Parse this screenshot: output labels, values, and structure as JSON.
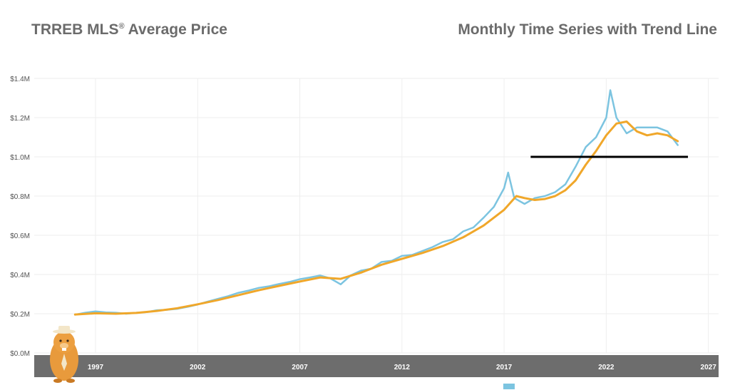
{
  "header": {
    "title_main": "TRREB MLS",
    "title_reg": "®",
    "title_rest": " Average Price",
    "subtitle": "Monthly Time Series with Trend Line"
  },
  "colors": {
    "price": "#7cc4e0",
    "trend": "#f0a72a",
    "threshold": "#000000",
    "axis_band": "#6d6d6d",
    "grid": "#eeeeee"
  },
  "mascot": {
    "icon": "beaver-mascot-icon"
  },
  "chart_data": {
    "type": "line",
    "title": "TRREB MLS® Average Price",
    "subtitle": "Monthly Time Series with Trend Line",
    "x_ticks": [
      "1997",
      "2002",
      "2007",
      "2012",
      "2017",
      "2022",
      "2027"
    ],
    "y_ticks": [
      "$0.0M",
      "$0.2M",
      "$0.4M",
      "$0.6M",
      "$0.8M",
      "$1.0M",
      "$1.2M",
      "$1.4M"
    ],
    "xlim": [
      1994,
      2027.5
    ],
    "ylim": [
      0,
      1.4
    ],
    "y_unit": "$M",
    "grid": true,
    "series": [
      {
        "key": "price",
        "style": "monthly",
        "points": [
          [
            1996.0,
            0.195
          ],
          [
            1996.5,
            0.205
          ],
          [
            1997.0,
            0.212
          ],
          [
            1997.5,
            0.207
          ],
          [
            1998.0,
            0.205
          ],
          [
            1998.5,
            0.2
          ],
          [
            1999.0,
            0.205
          ],
          [
            1999.5,
            0.208
          ],
          [
            2000.0,
            0.218
          ],
          [
            2000.5,
            0.22
          ],
          [
            2001.0,
            0.225
          ],
          [
            2001.5,
            0.235
          ],
          [
            2002.0,
            0.247
          ],
          [
            2002.5,
            0.262
          ],
          [
            2003.0,
            0.276
          ],
          [
            2003.5,
            0.29
          ],
          [
            2004.0,
            0.307
          ],
          [
            2004.5,
            0.318
          ],
          [
            2005.0,
            0.332
          ],
          [
            2005.5,
            0.34
          ],
          [
            2006.0,
            0.352
          ],
          [
            2006.5,
            0.362
          ],
          [
            2007.0,
            0.376
          ],
          [
            2007.5,
            0.385
          ],
          [
            2008.0,
            0.395
          ],
          [
            2008.5,
            0.38
          ],
          [
            2009.0,
            0.35
          ],
          [
            2009.5,
            0.396
          ],
          [
            2010.0,
            0.42
          ],
          [
            2010.5,
            0.43
          ],
          [
            2011.0,
            0.464
          ],
          [
            2011.5,
            0.47
          ],
          [
            2012.0,
            0.495
          ],
          [
            2012.5,
            0.5
          ],
          [
            2013.0,
            0.52
          ],
          [
            2013.5,
            0.54
          ],
          [
            2014.0,
            0.566
          ],
          [
            2014.5,
            0.58
          ],
          [
            2015.0,
            0.62
          ],
          [
            2015.5,
            0.64
          ],
          [
            2016.0,
            0.69
          ],
          [
            2016.5,
            0.745
          ],
          [
            2017.0,
            0.84
          ],
          [
            2017.2,
            0.92
          ],
          [
            2017.5,
            0.79
          ],
          [
            2018.0,
            0.76
          ],
          [
            2018.5,
            0.79
          ],
          [
            2019.0,
            0.8
          ],
          [
            2019.5,
            0.82
          ],
          [
            2020.0,
            0.86
          ],
          [
            2020.5,
            0.95
          ],
          [
            2021.0,
            1.05
          ],
          [
            2021.5,
            1.1
          ],
          [
            2022.0,
            1.2
          ],
          [
            2022.2,
            1.34
          ],
          [
            2022.5,
            1.2
          ],
          [
            2023.0,
            1.12
          ],
          [
            2023.5,
            1.15
          ],
          [
            2024.0,
            1.15
          ],
          [
            2024.5,
            1.15
          ],
          [
            2025.0,
            1.13
          ],
          [
            2025.5,
            1.06
          ]
        ]
      },
      {
        "key": "trend",
        "style": "trend",
        "points": [
          [
            1996.0,
            0.196
          ],
          [
            1997.0,
            0.202
          ],
          [
            1998.0,
            0.2
          ],
          [
            1999.0,
            0.204
          ],
          [
            2000.0,
            0.214
          ],
          [
            2001.0,
            0.228
          ],
          [
            2002.0,
            0.248
          ],
          [
            2003.0,
            0.27
          ],
          [
            2004.0,
            0.295
          ],
          [
            2005.0,
            0.32
          ],
          [
            2006.0,
            0.342
          ],
          [
            2007.0,
            0.364
          ],
          [
            2008.0,
            0.385
          ],
          [
            2009.0,
            0.378
          ],
          [
            2010.0,
            0.41
          ],
          [
            2011.0,
            0.45
          ],
          [
            2012.0,
            0.48
          ],
          [
            2013.0,
            0.51
          ],
          [
            2014.0,
            0.545
          ],
          [
            2015.0,
            0.59
          ],
          [
            2016.0,
            0.65
          ],
          [
            2017.0,
            0.73
          ],
          [
            2017.6,
            0.8
          ],
          [
            2018.0,
            0.79
          ],
          [
            2018.5,
            0.78
          ],
          [
            2019.0,
            0.785
          ],
          [
            2019.5,
            0.8
          ],
          [
            2020.0,
            0.83
          ],
          [
            2020.5,
            0.88
          ],
          [
            2021.0,
            0.96
          ],
          [
            2021.5,
            1.03
          ],
          [
            2022.0,
            1.11
          ],
          [
            2022.5,
            1.17
          ],
          [
            2023.0,
            1.18
          ],
          [
            2023.5,
            1.13
          ],
          [
            2024.0,
            1.11
          ],
          [
            2024.5,
            1.12
          ],
          [
            2025.0,
            1.11
          ],
          [
            2025.5,
            1.08
          ]
        ]
      }
    ],
    "threshold_line": {
      "x_start": 2018.3,
      "x_end": 2026.0,
      "y": 1.0
    }
  }
}
